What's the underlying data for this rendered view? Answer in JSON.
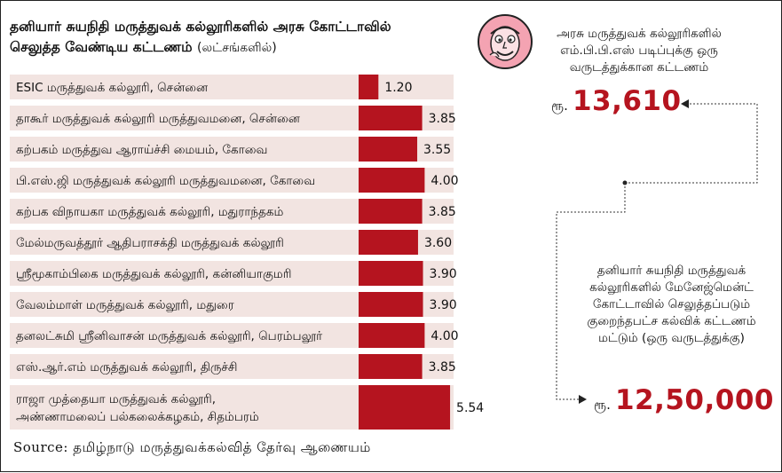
{
  "header": {
    "title_line1": "தனியார் சுயநிதி மருத்துவக் கல்லூரிகளில் அரசு கோட்டாவில்",
    "title_line2": "செலுத்த வேண்டிய கட்டணம்",
    "unit": "(லட்சங்களில்)"
  },
  "colors": {
    "bar": "#b5141f",
    "row_bg": "#f2e4e1",
    "accent": "#b5141f"
  },
  "logo": {
    "icon": "cartoon-mascot-icon"
  },
  "chart_data": {
    "type": "bar",
    "orientation": "horizontal",
    "categories": [
      "ESIC மருத்துவக் கல்லூரி, சென்னை",
      "தாகூர் மருத்துவக் கல்லூரி மருத்துவமனை, சென்னை",
      "கற்பகம் மருத்துவ ஆராய்ச்சி மையம், கோவை",
      "பி.எஸ்.ஜி மருத்துவக் கல்லூரி மருத்துவமனை, கோவை",
      "கற்பக விநாயகா மருத்துவக் கல்லூரி, மதுராந்தகம்",
      "மேல்மருவத்தூர் ஆதிபராசக்தி மருத்துவக் கல்லூரி",
      "ஸ்ரீமூகாம்பிகை மருத்துவக் கல்லூரி, கன்னியாகுமரி",
      "வேலம்மாள் மருத்துவக் கல்லூரி, மதுரை",
      "தனலட்சுமி ஸ்ரீனிவாசன் மருத்துவக் கல்லூரி, பெரம்பலூர்",
      "எஸ்.ஆர்.எம் மருத்துவக் கல்லூரி, திருச்சி",
      "ராஜா முத்தையா மருத்துவக் கல்லூரி,\nஅண்ணாமலைப் பல்கலைக்கழகம், சிதம்பரம்"
    ],
    "values": [
      1.2,
      3.85,
      3.55,
      4.0,
      3.85,
      3.6,
      3.9,
      3.9,
      4.0,
      3.85,
      5.54
    ],
    "value_labels": [
      "1.20",
      "3.85",
      "3.55",
      "4.00",
      "3.85",
      "3.60",
      "3.90",
      "3.90",
      "4.00",
      "3.85",
      "5.54"
    ]
  },
  "gov_note": {
    "text": "அரசு மருத்துவக் கல்லூரிகளில் எம்.பி.பி.எஸ் படிப்புக்கு ஒரு வருடத்துக்கான கட்டணம்",
    "currency": "ரூ.",
    "amount": "13,610"
  },
  "pvt_note": {
    "text": "தனியார் சுயநிதி மருத்துவக் கல்லூரிகளில் மேனேஜ்மென்ட் கோட்டாவில் செலுத்தப்படும் குறைந்தபட்ச கல்விக் கட்டணம் மட்டும் (ஒரு வருடத்துக்கு)",
    "currency": "ரூ.",
    "amount": "12,50,000"
  },
  "source": "Source: தமிழ்நாடு மருத்துவக்கல்வித் தேர்வு ஆணையம்"
}
